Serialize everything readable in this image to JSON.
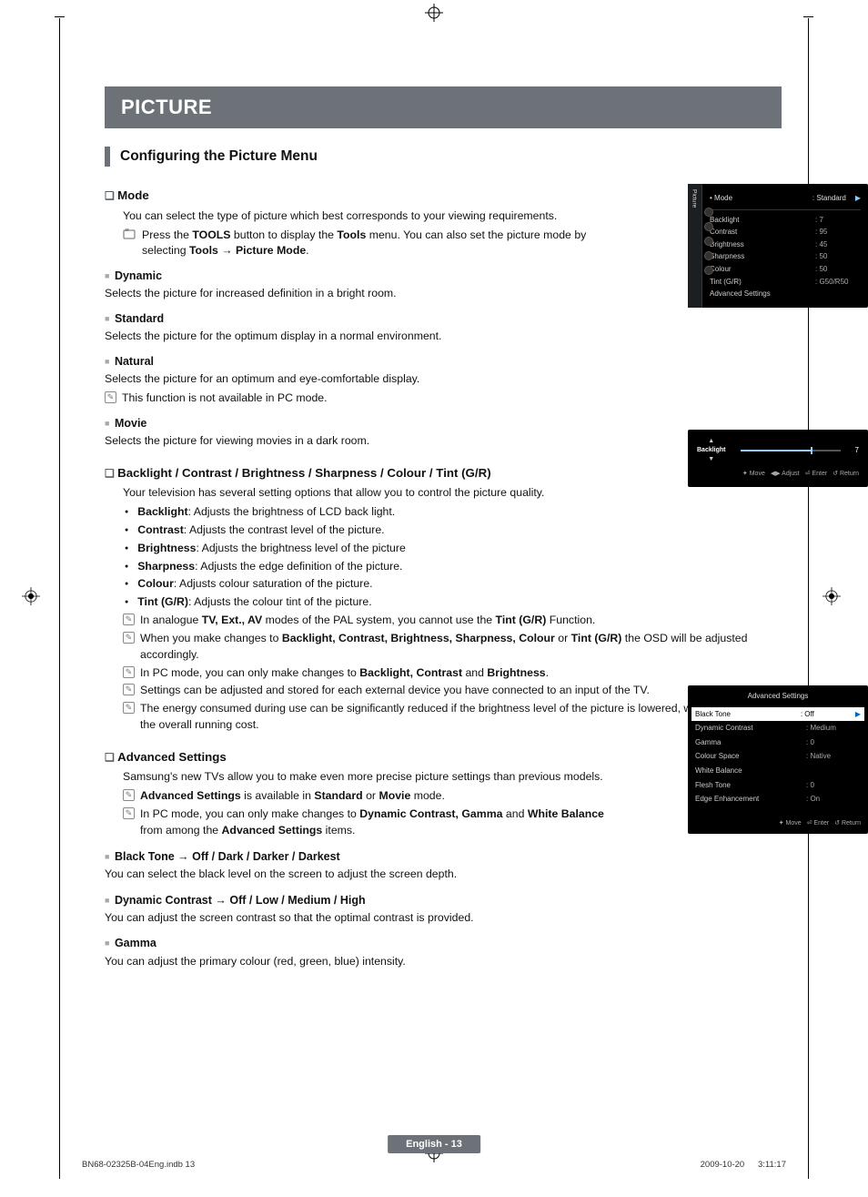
{
  "banner": "PICTURE",
  "section_title": "Configuring the Picture Menu",
  "mode": {
    "heading": "Mode",
    "intro": "You can select the type of picture which best corresponds to your viewing requirements.",
    "tools_note_parts": [
      "Press the ",
      "TOOLS",
      " button to display the ",
      "Tools",
      " menu. You can also set the picture mode by selecting ",
      "Tools → Picture Mode",
      "."
    ],
    "items": [
      {
        "title": "Dynamic",
        "text": "Selects the picture for increased definition in a bright room."
      },
      {
        "title": "Standard",
        "text": "Selects the picture for the optimum display in a normal environment."
      },
      {
        "title": "Natural",
        "text": "Selects the picture for an optimum and eye-comfortable display.",
        "note": "This function is not available in PC mode."
      },
      {
        "title": "Movie",
        "text": "Selects the picture for viewing movies in a dark room."
      }
    ]
  },
  "adjust": {
    "heading": "Backlight / Contrast / Brightness / Sharpness / Colour / Tint (G/R)",
    "intro": "Your television has several setting options that allow you to control the picture quality.",
    "bullets": [
      [
        "Backlight",
        ": Adjusts the brightness of LCD back light."
      ],
      [
        "Contrast",
        ": Adjusts the contrast level of the picture."
      ],
      [
        "Brightness",
        ": Adjusts the brightness level of the picture"
      ],
      [
        "Sharpness",
        ": Adjusts the edge definition of the picture."
      ],
      [
        "Colour",
        ": Adjusts colour saturation of the picture."
      ],
      [
        "Tint (G/R)",
        ": Adjusts the colour tint of the picture."
      ]
    ],
    "notes": [
      [
        "In analogue ",
        "TV, Ext., AV",
        " modes of the PAL system, you cannot use the ",
        "Tint (G/R)",
        " Function."
      ],
      [
        "When you make changes to ",
        "Backlight, Contrast, Brightness, Sharpness, Colour",
        " or ",
        "Tint (G/R)",
        " the OSD will be adjusted accordingly."
      ],
      [
        "In PC mode, you can only make changes to ",
        "Backlight, Contrast",
        " and ",
        "Brightness",
        "."
      ],
      [
        "Settings can be adjusted and stored for each external device you have connected to an input of the TV."
      ],
      [
        "The energy consumed during use can be significantly reduced if the brightness level of the picture is lowered, which will reduce the overall running cost."
      ]
    ]
  },
  "advanced": {
    "heading": "Advanced Settings",
    "intro": "Samsung's new TVs allow you to make even more precise picture settings than previous models.",
    "notes": [
      [
        "",
        "Advanced Settings",
        " is available in ",
        "Standard",
        " or ",
        "Movie",
        " mode."
      ],
      [
        "In PC mode, you can only make changes to ",
        "Dynamic Contrast, Gamma",
        " and ",
        "White Balance",
        " from among the ",
        "Advanced Settings",
        " items."
      ]
    ],
    "subs": [
      {
        "title": "Black Tone → Off / Dark / Darker / Darkest",
        "text": "You can select the black level on the screen to adjust the screen depth."
      },
      {
        "title": "Dynamic Contrast → Off / Low / Medium / High",
        "text": "You can adjust the screen contrast so that the optimal contrast is provided."
      },
      {
        "title": "Gamma",
        "text": "You can adjust the primary colour (red, green, blue) intensity."
      }
    ]
  },
  "osd1": {
    "tab": "Picture",
    "header_label": "Mode",
    "header_value": ": Standard",
    "rows": [
      {
        "lbl": "Backlight",
        "val": ": 7"
      },
      {
        "lbl": "Contrast",
        "val": ": 95"
      },
      {
        "lbl": "Brightness",
        "val": ": 45"
      },
      {
        "lbl": "Sharpness",
        "val": ": 50"
      },
      {
        "lbl": "Colour",
        "val": ": 50"
      },
      {
        "lbl": "Tint (G/R)",
        "val": ": G50/R50",
        "dim": true
      },
      {
        "lbl": "Advanced Settings",
        "val": ""
      }
    ]
  },
  "osd2": {
    "label": "Backlight",
    "value": "7",
    "slider_percent": 70,
    "footer": [
      "✦ Move",
      "◀▶ Adjust",
      "⏎ Enter",
      "↺ Return"
    ]
  },
  "osd3": {
    "title": "Advanced Settings",
    "rows": [
      {
        "lbl": "Black Tone",
        "val": ": Off",
        "selected": true
      },
      {
        "lbl": "Dynamic Contrast",
        "val": ": Medium"
      },
      {
        "lbl": "Gamma",
        "val": ": 0"
      },
      {
        "lbl": "Colour Space",
        "val": ": Native"
      },
      {
        "lbl": "White Balance",
        "val": ""
      },
      {
        "lbl": "Flesh Tone",
        "val": ": 0"
      },
      {
        "lbl": "Edge Enhancement",
        "val": ": On"
      }
    ],
    "footer": [
      "✦ Move",
      "⏎ Enter",
      "↺ Return"
    ]
  },
  "footer_badge": "English - 13",
  "doc_footer_left": "BN68-02325B-04Eng.indb   13",
  "doc_footer_right": "2009-10-20      3:11:17"
}
